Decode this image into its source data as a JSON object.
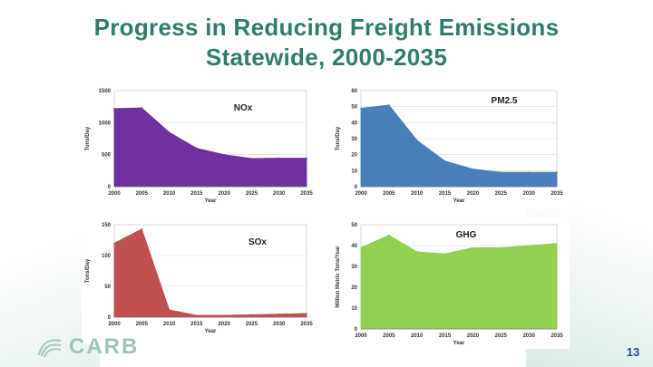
{
  "slide": {
    "title_line1": "Progress in Reducing Freight Emissions",
    "title_line2": "Statewide, 2000-2035",
    "logo_text": "CARB",
    "page_number": "13"
  },
  "chart_data": [
    {
      "id": "nox",
      "type": "area",
      "title": "NOx",
      "xlabel": "Year",
      "ylabel": "Tons/Day",
      "x": [
        2000,
        2005,
        2010,
        2015,
        2020,
        2025,
        2030,
        2035
      ],
      "values": [
        1220,
        1230,
        850,
        600,
        500,
        440,
        445,
        445
      ],
      "ylim": [
        0,
        1500
      ],
      "yticks": [
        0,
        500,
        1000,
        1500
      ],
      "xticks": [
        2000,
        2005,
        2010,
        2015,
        2020,
        2025,
        2030,
        2035
      ],
      "color": "#7030a0",
      "grid": true
    },
    {
      "id": "pm",
      "type": "area",
      "title": "PM2.5",
      "xlabel": "Year",
      "ylabel": "Tons/Day",
      "x": [
        2000,
        2005,
        2010,
        2015,
        2020,
        2025,
        2030,
        2035
      ],
      "values": [
        49,
        51,
        29,
        16,
        11,
        9,
        9,
        9
      ],
      "ylim": [
        0,
        60
      ],
      "yticks": [
        0,
        10,
        20,
        30,
        40,
        50,
        60
      ],
      "xticks": [
        2000,
        2005,
        2010,
        2015,
        2020,
        2025,
        2030,
        2035
      ],
      "color": "#4a7ebb",
      "grid": true
    },
    {
      "id": "sox",
      "type": "area",
      "title": "SOx",
      "xlabel": "Year",
      "ylabel": "Tons/Day",
      "x": [
        2000,
        2005,
        2010,
        2015,
        2020,
        2025,
        2030,
        2035
      ],
      "values": [
        120,
        143,
        12,
        3,
        3,
        4,
        5,
        6
      ],
      "ylim": [
        0,
        150
      ],
      "yticks": [
        0,
        50,
        100,
        150
      ],
      "xticks": [
        2000,
        2005,
        2010,
        2015,
        2020,
        2025,
        2030,
        2035
      ],
      "color": "#c0504d",
      "grid": true
    },
    {
      "id": "ghg",
      "type": "area",
      "title": "GHG",
      "xlabel": "Year",
      "ylabel": "Million Metric Tons/Year",
      "x": [
        2000,
        2005,
        2010,
        2015,
        2020,
        2025,
        2030,
        2035
      ],
      "values": [
        39,
        45,
        37,
        36,
        39,
        39,
        40,
        41
      ],
      "ylim": [
        0,
        50
      ],
      "yticks": [
        0,
        10,
        20,
        30,
        40,
        50
      ],
      "xticks": [
        2000,
        2005,
        2010,
        2015,
        2020,
        2025,
        2030,
        2035
      ],
      "color": "#92d050",
      "grid": true
    }
  ]
}
